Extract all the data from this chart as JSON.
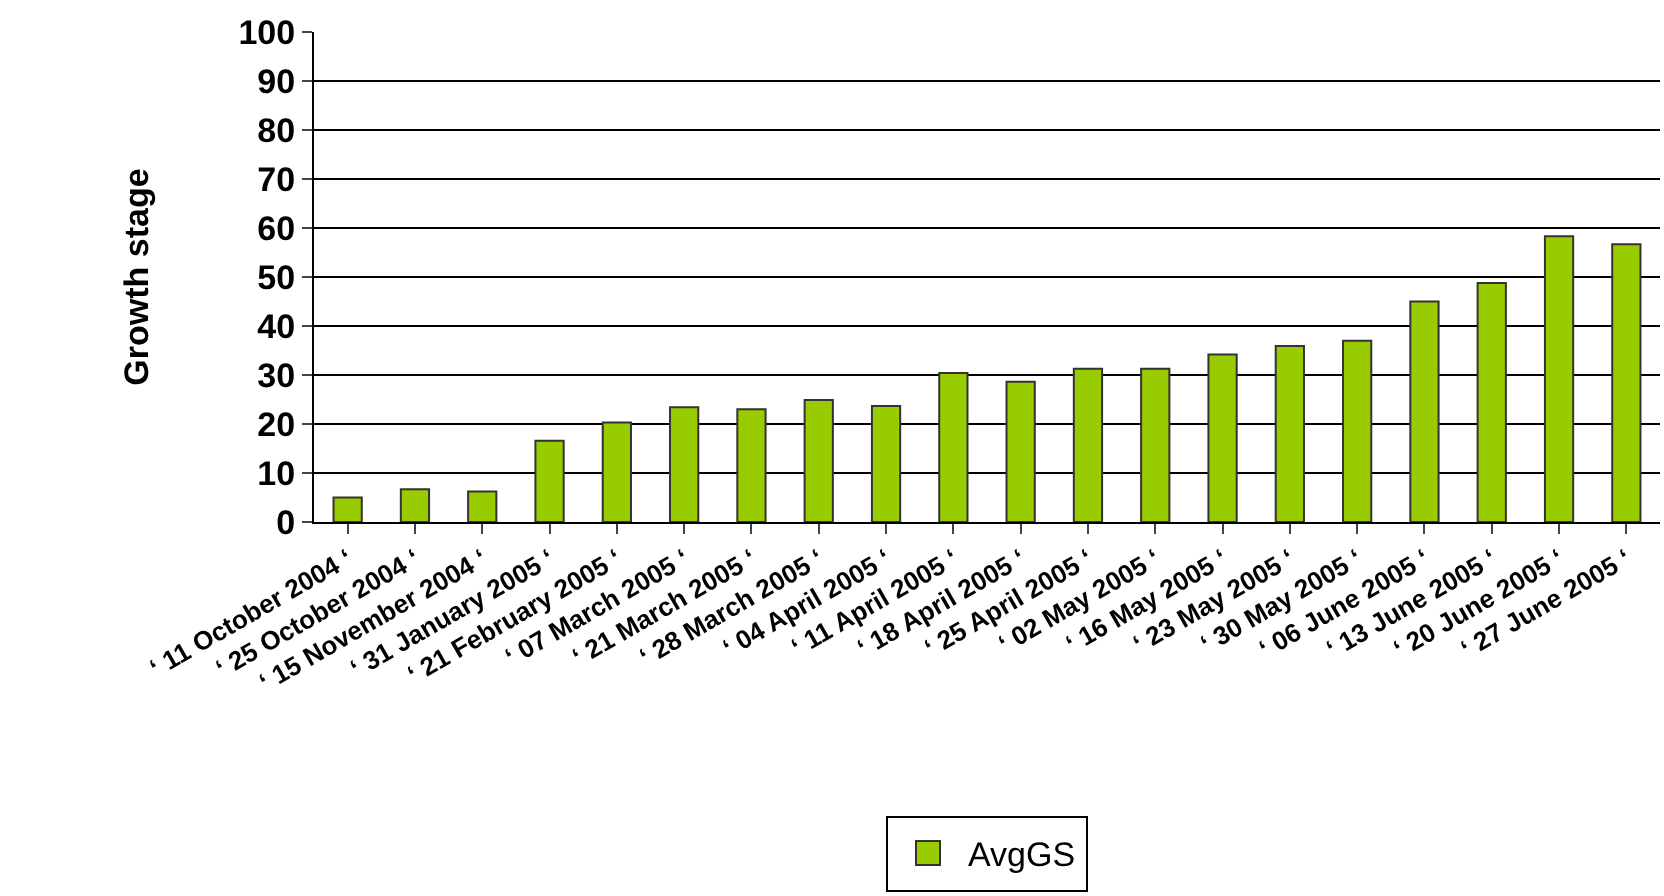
{
  "chart_data": {
    "type": "bar",
    "ylabel": "Growth stage",
    "categories": [
      "‘ 11 October 2004 ‘",
      "‘ 25 October 2004 ‘",
      "‘ 15 November 2004 ‘",
      "‘ 31 January 2005 ‘",
      "‘ 21 February 2005 ‘",
      "‘ 07 March 2005 ‘",
      "‘ 21 March 2005 ‘",
      "‘ 28 March 2005 ‘",
      "‘ 04 April 2005 ‘",
      "‘ 11 April 2005 ‘",
      "‘ 18 April 2005 ‘",
      "‘ 25 April 2005 ‘",
      "‘ 02 May 2005 ‘",
      "‘ 16 May 2005 ‘",
      "‘ 23 May 2005 ‘",
      "‘ 30 May 2005 ‘",
      "‘ 06 June 2005 ‘",
      "‘ 13 June 2005 ‘",
      "‘ 20 June 2005 ‘",
      "‘ 27 June 2005 ‘"
    ],
    "series": [
      {
        "name": "AvgGS",
        "color": "#99cc00",
        "values": [
          5.0,
          6.7,
          6.2,
          16.6,
          20.3,
          23.4,
          23.0,
          24.9,
          23.7,
          30.4,
          28.6,
          31.3,
          31.3,
          34.2,
          35.9,
          37.0,
          45.0,
          48.8,
          58.3,
          56.7
        ]
      }
    ],
    "ylim": [
      0,
      100
    ],
    "yticks": [
      0,
      10,
      20,
      30,
      40,
      50,
      60,
      70,
      80,
      90,
      100
    ],
    "grid": "y",
    "legend": "bottom"
  }
}
